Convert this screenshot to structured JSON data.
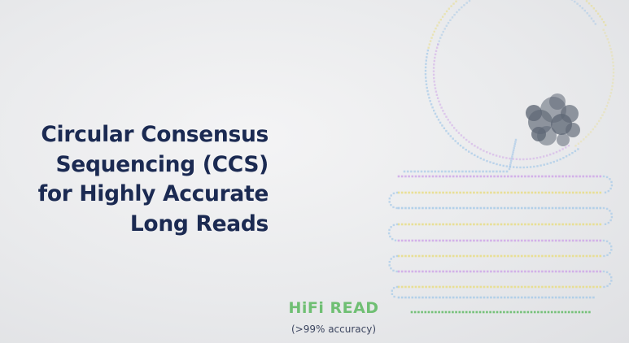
{
  "title": {
    "line1": "Circular Consensus",
    "line2": "Sequencing (CCS)",
    "line3": "for Highly Accurate",
    "line4": "Long Reads"
  },
  "hifi": {
    "label": "HiFi READ",
    "accuracy": "(>99% accuracy)"
  },
  "colors": {
    "title": "#1b2a52",
    "hifi": "#6fbf73",
    "yellow": "#e7dd86",
    "blue": "#a9cbe8",
    "purple": "#cfa7e8",
    "polymerase": "#5f6876"
  }
}
